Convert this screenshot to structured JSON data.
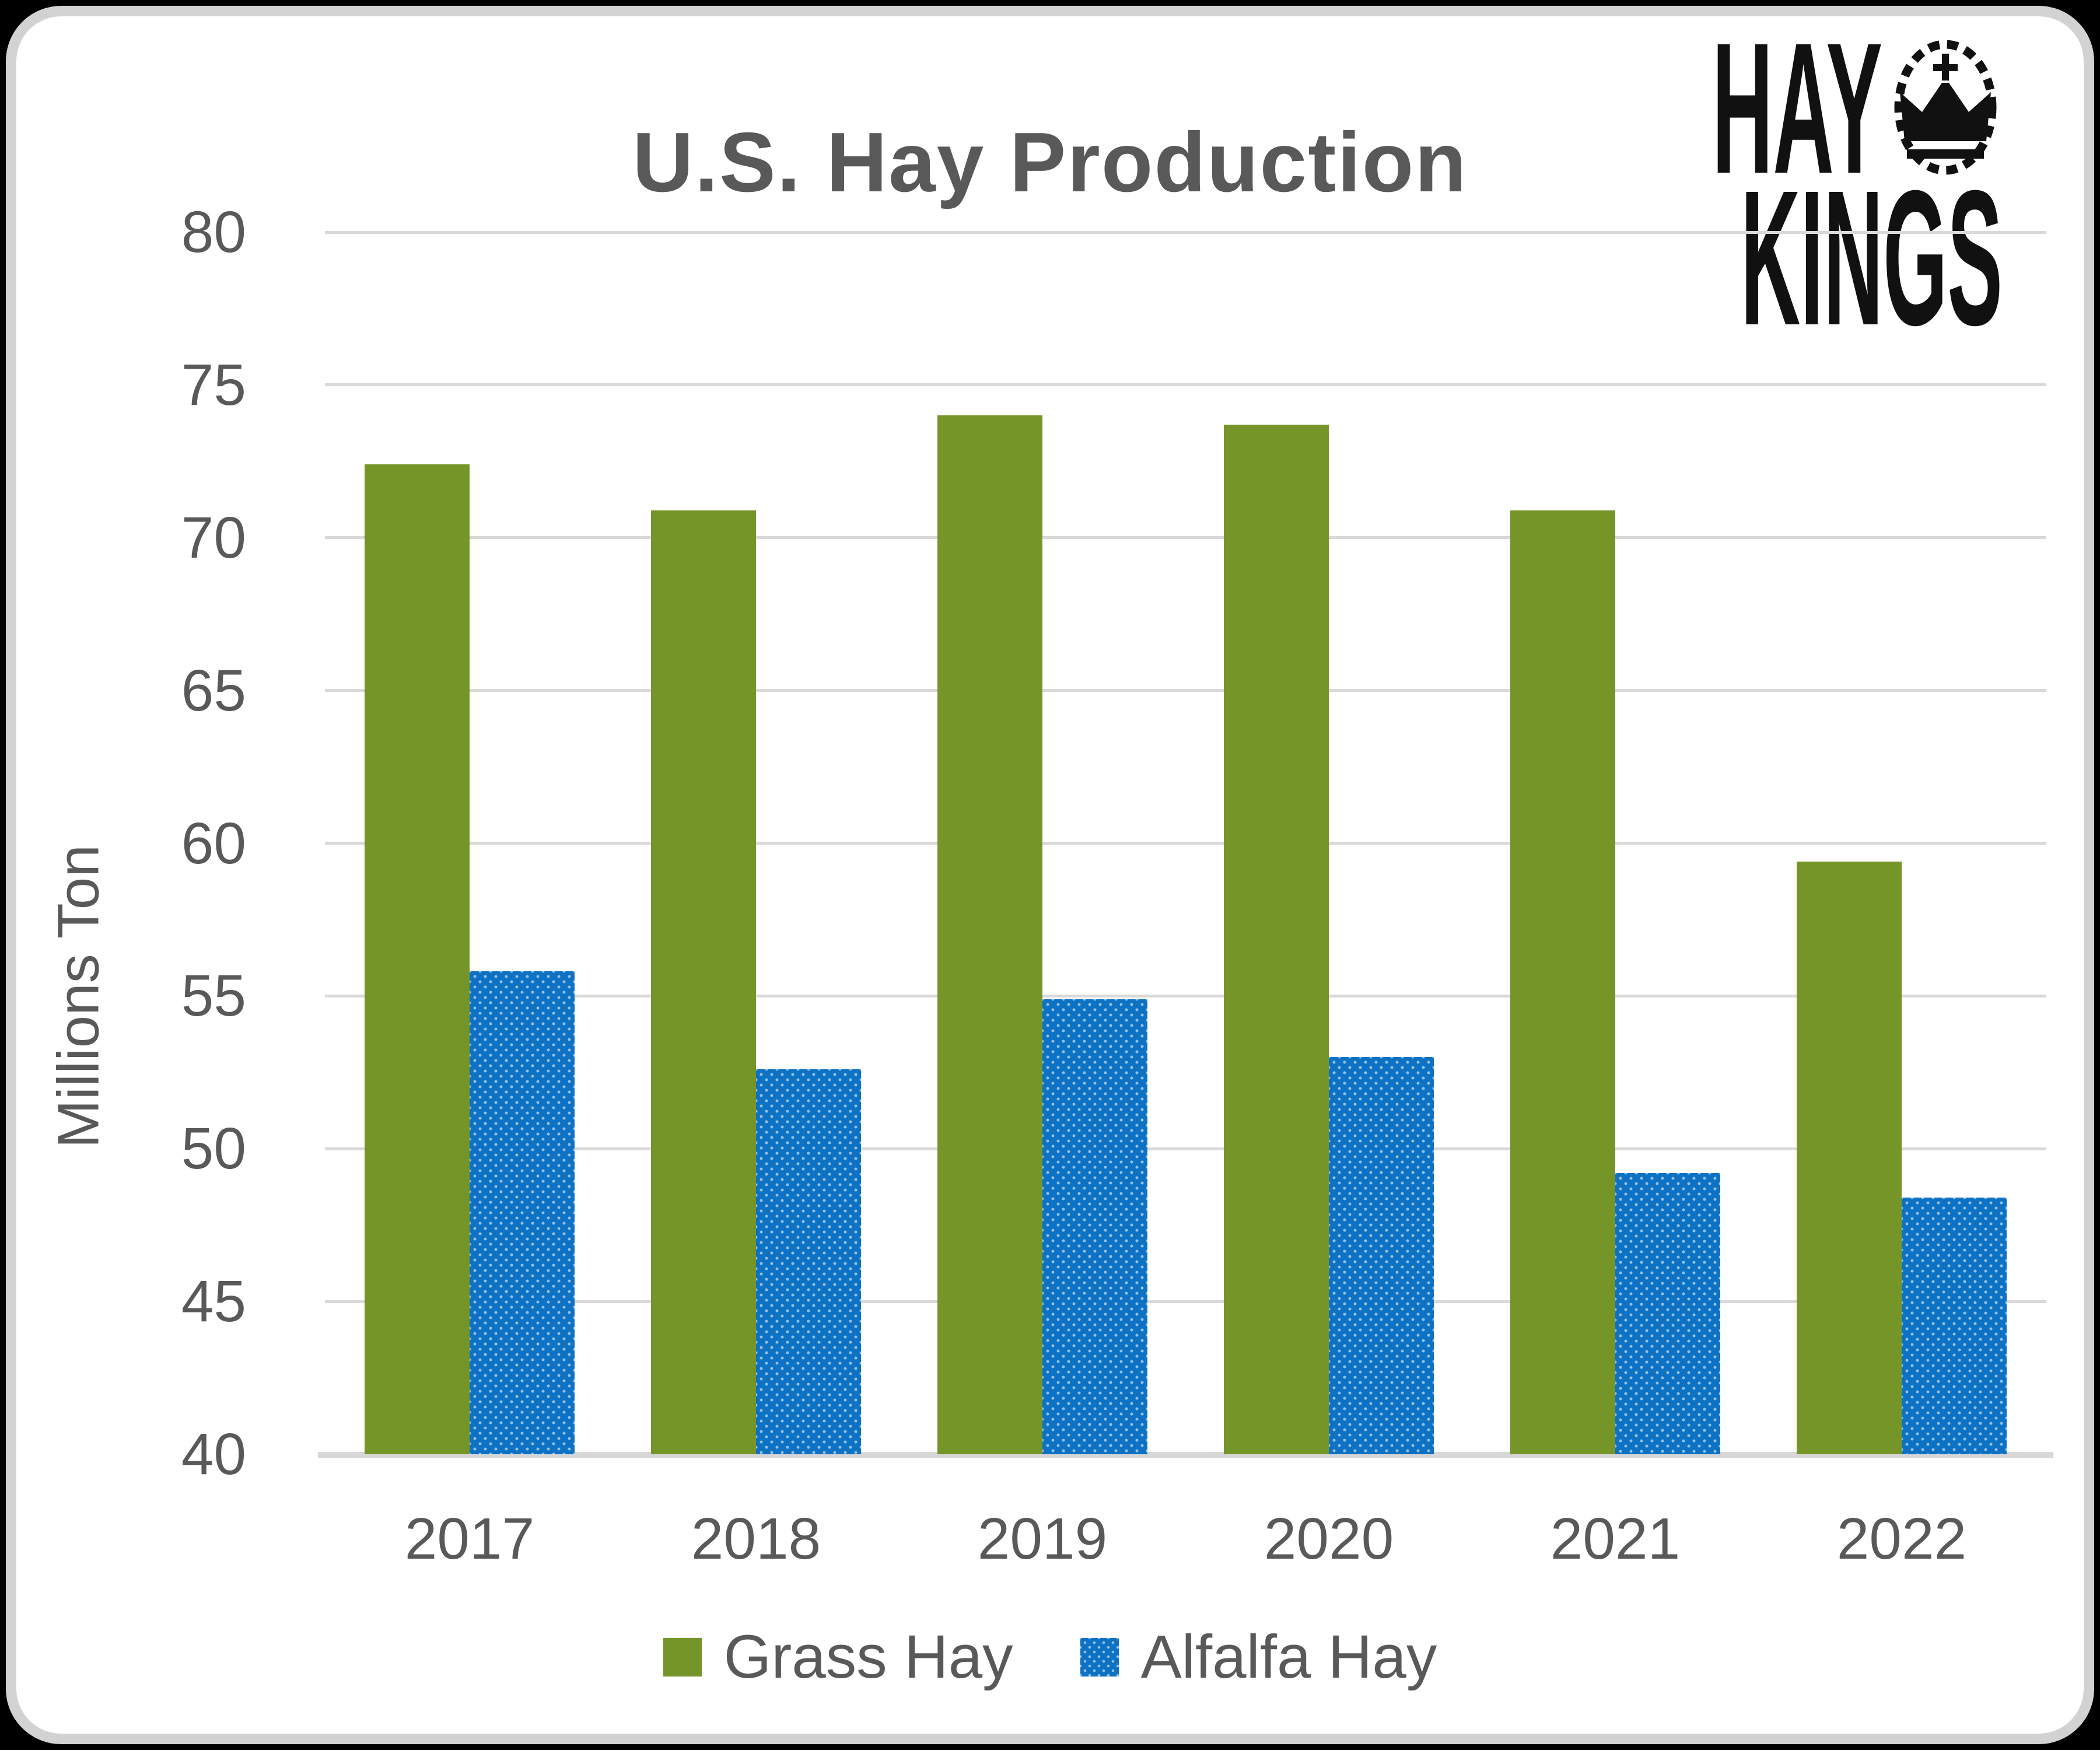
{
  "title": "U.S. Hay Production",
  "logo": {
    "word1": "HAY",
    "word2": "KINGS",
    "badge_icon": "crown-badge",
    "color": "#111111"
  },
  "y_axis": {
    "label": "Millions Ton",
    "ticks": [
      "80",
      "75",
      "70",
      "65",
      "60",
      "55",
      "50",
      "45",
      "40"
    ]
  },
  "legend": {
    "items": [
      {
        "label": "Grass Hay",
        "color": "#769529",
        "pattern": "solid"
      },
      {
        "label": "Alfalfa Hay",
        "color": "#0d72c4",
        "pattern": "dotted"
      }
    ]
  },
  "chart_data": {
    "type": "bar",
    "title": "U.S. Hay Production",
    "categories": [
      "2017",
      "2018",
      "2019",
      "2020",
      "2021",
      "2022"
    ],
    "series": [
      {
        "name": "Grass Hay",
        "color": "#769529",
        "pattern": "solid",
        "values": [
          72.4,
          70.9,
          74.0,
          73.7,
          70.9,
          59.4
        ]
      },
      {
        "name": "Alfalfa Hay",
        "color": "#0d72c4",
        "pattern": "dotted",
        "values": [
          55.8,
          52.6,
          54.9,
          53.0,
          49.2,
          48.4
        ]
      }
    ],
    "xlabel": "",
    "ylabel": "Millions Ton",
    "ylim": [
      40,
      80
    ],
    "yticks": [
      40,
      45,
      50,
      55,
      60,
      65,
      70,
      75,
      80
    ],
    "grid": "horizontal",
    "gridline_color": "#d9d9d9",
    "text_color": "#595959",
    "legend_position": "bottom"
  }
}
